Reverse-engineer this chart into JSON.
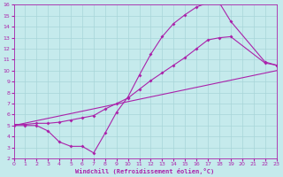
{
  "xlabel": "Windchill (Refroidissement éolien,°C)",
  "xlim": [
    0,
    23
  ],
  "ylim": [
    2,
    16
  ],
  "xticks": [
    0,
    1,
    2,
    3,
    4,
    5,
    6,
    7,
    8,
    9,
    10,
    11,
    12,
    13,
    14,
    15,
    16,
    17,
    18,
    19,
    20,
    21,
    22,
    23
  ],
  "yticks": [
    2,
    3,
    4,
    5,
    6,
    7,
    8,
    9,
    10,
    11,
    12,
    13,
    14,
    15,
    16
  ],
  "bg_color": "#c5eaec",
  "grid_color": "#a8d5d8",
  "line_color": "#aa22aa",
  "line1_x": [
    0,
    1,
    2,
    3,
    4,
    5,
    6,
    7,
    8,
    9,
    10,
    11,
    12,
    13,
    14,
    15,
    16,
    17,
    18,
    19,
    22,
    23
  ],
  "line1_y": [
    5.0,
    5.0,
    5.0,
    4.5,
    3.5,
    3.1,
    3.1,
    2.5,
    4.3,
    6.2,
    7.6,
    9.6,
    11.5,
    13.1,
    14.3,
    15.1,
    15.8,
    16.2,
    16.2,
    14.5,
    10.8,
    10.5
  ],
  "line2_x": [
    0,
    1,
    2,
    3,
    4,
    5,
    6,
    7,
    8,
    9,
    10,
    11,
    12,
    13,
    14,
    15,
    16,
    17,
    18,
    19,
    22,
    23
  ],
  "line2_y": [
    5.1,
    5.1,
    5.2,
    5.2,
    5.3,
    5.5,
    5.7,
    5.9,
    6.5,
    7.0,
    7.5,
    8.3,
    9.1,
    9.8,
    10.5,
    11.2,
    12.0,
    12.8,
    13.0,
    13.1,
    10.7,
    10.5
  ],
  "line3_x": [
    0,
    23
  ],
  "line3_y": [
    5.0,
    10.0
  ]
}
